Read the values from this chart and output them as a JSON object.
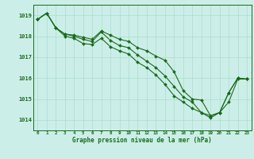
{
  "title": "Graphe pression niveau de la mer (hPa)",
  "background_color": "#cceee8",
  "grid_color": "#aaddcc",
  "line_color": "#1a6b1a",
  "x_labels": [
    "0",
    "1",
    "2",
    "3",
    "4",
    "5",
    "6",
    "7",
    "8",
    "9",
    "10",
    "11",
    "12",
    "13",
    "14",
    "15",
    "16",
    "17",
    "18",
    "19",
    "20",
    "21",
    "22",
    "23"
  ],
  "ylim": [
    1013.5,
    1019.5
  ],
  "yticks": [
    1014,
    1015,
    1016,
    1017,
    1018,
    1019
  ],
  "series": {
    "line1": [
      1018.8,
      1019.1,
      1018.4,
      1018.1,
      1018.05,
      1017.95,
      1017.85,
      1018.25,
      1018.05,
      1017.85,
      1017.75,
      1017.45,
      1017.3,
      1017.05,
      1016.85,
      1016.3,
      1015.4,
      1015.0,
      1014.95,
      1014.2,
      1014.35,
      1015.3,
      1016.0,
      1015.95
    ],
    "line2": [
      1018.8,
      1019.1,
      1018.4,
      1018.1,
      1018.0,
      1017.85,
      1017.75,
      1018.2,
      1017.8,
      1017.55,
      1017.45,
      1017.1,
      1016.8,
      1016.5,
      1016.1,
      1015.6,
      1015.1,
      1014.85,
      1014.35,
      1014.2,
      1014.35,
      1014.85,
      1015.95,
      1015.95
    ],
    "line3": [
      1018.8,
      1019.1,
      1018.4,
      1018.0,
      1017.9,
      1017.65,
      1017.6,
      1017.9,
      1017.5,
      1017.3,
      1017.15,
      1016.75,
      1016.5,
      1016.15,
      1015.7,
      1015.15,
      1014.85,
      1014.55,
      1014.35,
      1014.1,
      1014.35,
      1015.3,
      1016.0,
      1015.95
    ]
  }
}
